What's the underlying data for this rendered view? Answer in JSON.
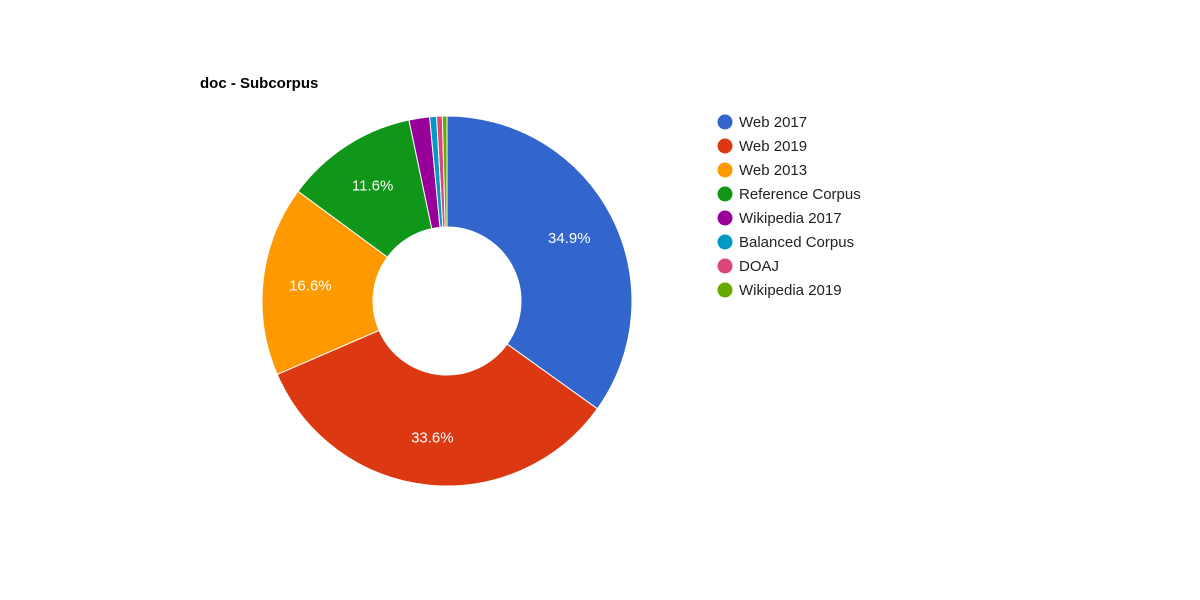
{
  "chart_data": {
    "type": "pie",
    "title": "doc - Subcorpus",
    "donut": true,
    "legend_position": "right",
    "slices": [
      {
        "label": "Web 2017",
        "value": 34.9,
        "color": "#3366cc",
        "display": "34.9%"
      },
      {
        "label": "Web 2019",
        "value": 33.6,
        "color": "#dc3912",
        "display": "33.6%"
      },
      {
        "label": "Web 2013",
        "value": 16.6,
        "color": "#ff9900",
        "display": "16.6%"
      },
      {
        "label": "Reference Corpus",
        "value": 11.6,
        "color": "#109618",
        "display": "11.6%"
      },
      {
        "label": "Wikipedia 2017",
        "value": 1.8,
        "color": "#990099",
        "display": ""
      },
      {
        "label": "Balanced Corpus",
        "value": 0.6,
        "color": "#0099c6",
        "display": ""
      },
      {
        "label": "DOAJ",
        "value": 0.5,
        "color": "#dd4477",
        "display": ""
      },
      {
        "label": "Wikipedia 2019",
        "value": 0.4,
        "color": "#66aa00",
        "display": ""
      }
    ]
  }
}
